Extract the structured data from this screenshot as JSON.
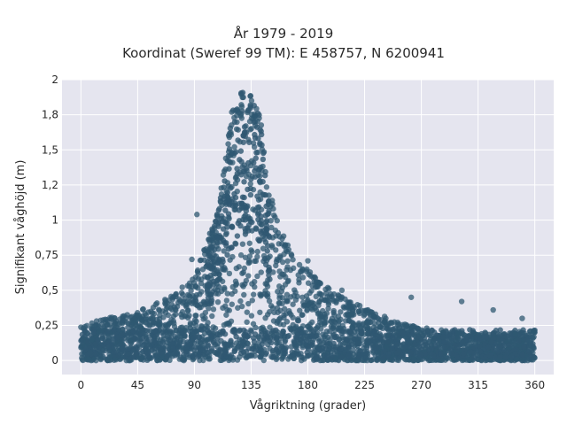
{
  "chart_data": {
    "type": "scatter",
    "title_line1": "År 1979 - 2019",
    "title_line2": "Koordinat (Sweref 99 TM): E 458757, N 6200941",
    "xlabel": "Vågriktning (grader)",
    "ylabel": "Signifikant våghöjd (m)",
    "xlim": [
      -15,
      375
    ],
    "ylim": [
      -0.1,
      2.0
    ],
    "x_ticks": [
      0,
      45,
      90,
      135,
      180,
      225,
      270,
      315,
      360
    ],
    "x_tick_labels": [
      "0",
      "45",
      "90",
      "135",
      "180",
      "225",
      "270",
      "315",
      "360"
    ],
    "y_ticks": [
      0,
      0.25,
      0.5,
      0.75,
      1,
      1.25,
      1.5,
      1.75,
      2
    ],
    "y_tick_labels": [
      "0",
      "0,25",
      "0,5",
      "0,75",
      "1",
      "1,2",
      "1,5",
      "1,8",
      "2"
    ],
    "grid": true,
    "legend": "none",
    "marker_color": "#2f5872",
    "plot_background": "#e5e5ef",
    "series": [
      {
        "envelope_note": "dense cloud of points; upper envelope of significant wave height by direction",
        "upper_envelope": [
          {
            "x": 0,
            "y": 0.25
          },
          {
            "x": 20,
            "y": 0.3
          },
          {
            "x": 45,
            "y": 0.35
          },
          {
            "x": 70,
            "y": 0.45
          },
          {
            "x": 90,
            "y": 0.6
          },
          {
            "x": 100,
            "y": 0.85
          },
          {
            "x": 108,
            "y": 1.05
          },
          {
            "x": 115,
            "y": 1.45
          },
          {
            "x": 120,
            "y": 1.8
          },
          {
            "x": 126,
            "y": 1.92
          },
          {
            "x": 135,
            "y": 1.9
          },
          {
            "x": 142,
            "y": 1.75
          },
          {
            "x": 150,
            "y": 1.2
          },
          {
            "x": 160,
            "y": 0.9
          },
          {
            "x": 175,
            "y": 0.7
          },
          {
            "x": 190,
            "y": 0.55
          },
          {
            "x": 210,
            "y": 0.45
          },
          {
            "x": 230,
            "y": 0.35
          },
          {
            "x": 260,
            "y": 0.25
          },
          {
            "x": 300,
            "y": 0.2
          },
          {
            "x": 340,
            "y": 0.2
          },
          {
            "x": 360,
            "y": 0.22
          }
        ],
        "outliers": [
          {
            "x": 262,
            "y": 0.45
          },
          {
            "x": 302,
            "y": 0.42
          },
          {
            "x": 327,
            "y": 0.36
          },
          {
            "x": 350,
            "y": 0.3
          },
          {
            "x": 207,
            "y": 0.5
          },
          {
            "x": 180,
            "y": 0.71
          },
          {
            "x": 92,
            "y": 1.04
          },
          {
            "x": 88,
            "y": 0.72
          }
        ]
      }
    ]
  }
}
